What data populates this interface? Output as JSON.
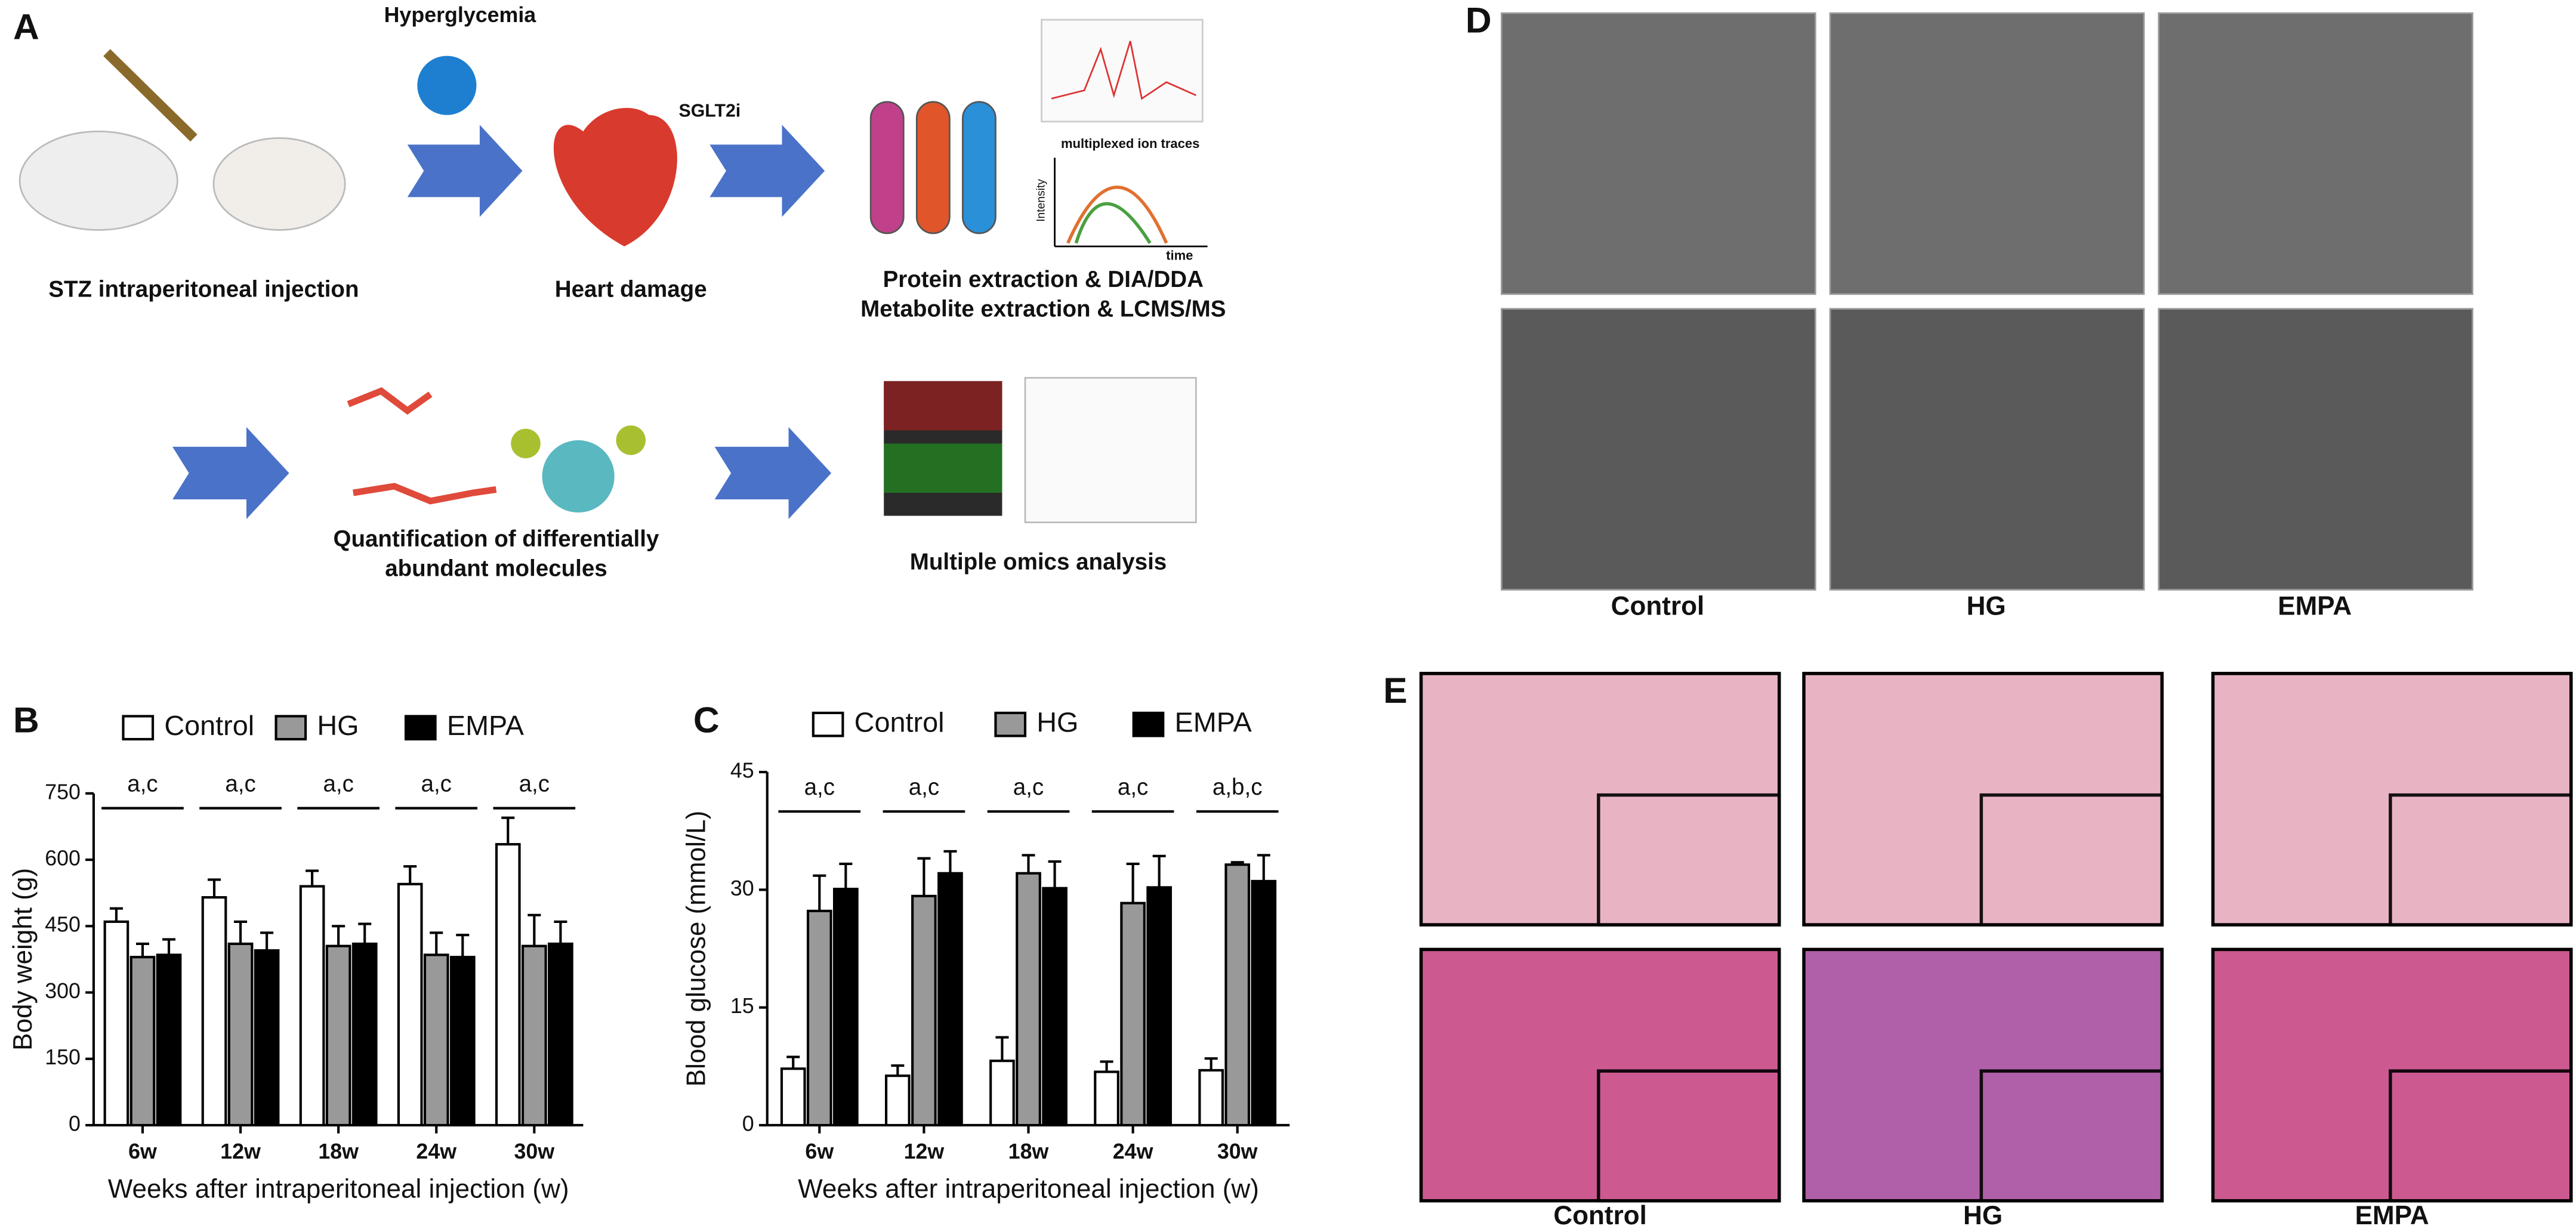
{
  "panel_labels": [
    "A",
    "B",
    "C",
    "D",
    "E"
  ],
  "workflow": {
    "hyperglycemia": "Hyperglycemia",
    "sglt2i": "SGLT2i",
    "injection": "STZ intraperitoneal injection",
    "heart": "Heart damage",
    "extraction": [
      "Protein extraction & DIA/DDA",
      "Metabolite extraction & LCMS/MS"
    ],
    "traces": "multiplexed ion traces",
    "intensity": "Intensity",
    "time": "time",
    "quantification": [
      "Quantification of differentially",
      "abundant molecules"
    ],
    "omics": "Multiple omics analysis"
  },
  "em_images": {
    "columns": [
      "Control",
      "HG",
      "EMPA"
    ]
  },
  "histology": {
    "columns": [
      "Control",
      "HG",
      "EMPA"
    ]
  },
  "chart_data": [
    {
      "type": "bar",
      "y_label": "Body weight (g)",
      "x_label": "Weeks after intraperitoneal injection (w)",
      "categories": [
        "6w",
        "12w",
        "18w",
        "24w",
        "30w"
      ],
      "series": [
        {
          "name": "Control",
          "color": "#ffffff",
          "values": [
            460,
            515,
            540,
            545,
            635
          ],
          "errors": [
            30,
            40,
            35,
            40,
            60
          ]
        },
        {
          "name": "HG",
          "color": "#999999",
          "values": [
            380,
            410,
            405,
            385,
            405
          ],
          "errors": [
            30,
            50,
            45,
            50,
            70
          ]
        },
        {
          "name": "EMPA",
          "color": "#000000",
          "values": [
            385,
            395,
            410,
            380,
            410
          ],
          "errors": [
            35,
            40,
            45,
            50,
            50
          ]
        }
      ],
      "significance": [
        "a,c",
        "a,c",
        "a,c",
        "a,c",
        "a,c"
      ],
      "ylim": [
        0,
        750
      ],
      "yticks": [
        0,
        150,
        300,
        450,
        600,
        750
      ],
      "legend": "top"
    },
    {
      "type": "bar",
      "y_label": "Blood glucose (mmol/L)",
      "x_label": "Weeks after intraperitoneal injection (w)",
      "categories": [
        "6w",
        "12w",
        "18w",
        "24w",
        "30w"
      ],
      "series": [
        {
          "name": "Control",
          "color": "#ffffff",
          "values": [
            7.2,
            6.3,
            8.2,
            6.8,
            7.0
          ],
          "errors": [
            1.5,
            1.3,
            3,
            1.3,
            1.5
          ]
        },
        {
          "name": "HG",
          "color": "#999999",
          "values": [
            27.3,
            29.2,
            32.1,
            28.3,
            33.2
          ],
          "errors": [
            4.5,
            4.8,
            2.3,
            5,
            0.3
          ]
        },
        {
          "name": "EMPA",
          "color": "#000000",
          "values": [
            30.1,
            32.1,
            30.2,
            30.3,
            31.1
          ],
          "errors": [
            3.2,
            2.8,
            3.4,
            4,
            3.3
          ]
        }
      ],
      "significance": [
        "a,c",
        "a,c",
        "a,c",
        "a,c",
        "a,b,c"
      ],
      "ylim": [
        0,
        45
      ],
      "yticks": [
        0,
        15,
        30,
        45
      ],
      "legend": "top"
    }
  ]
}
